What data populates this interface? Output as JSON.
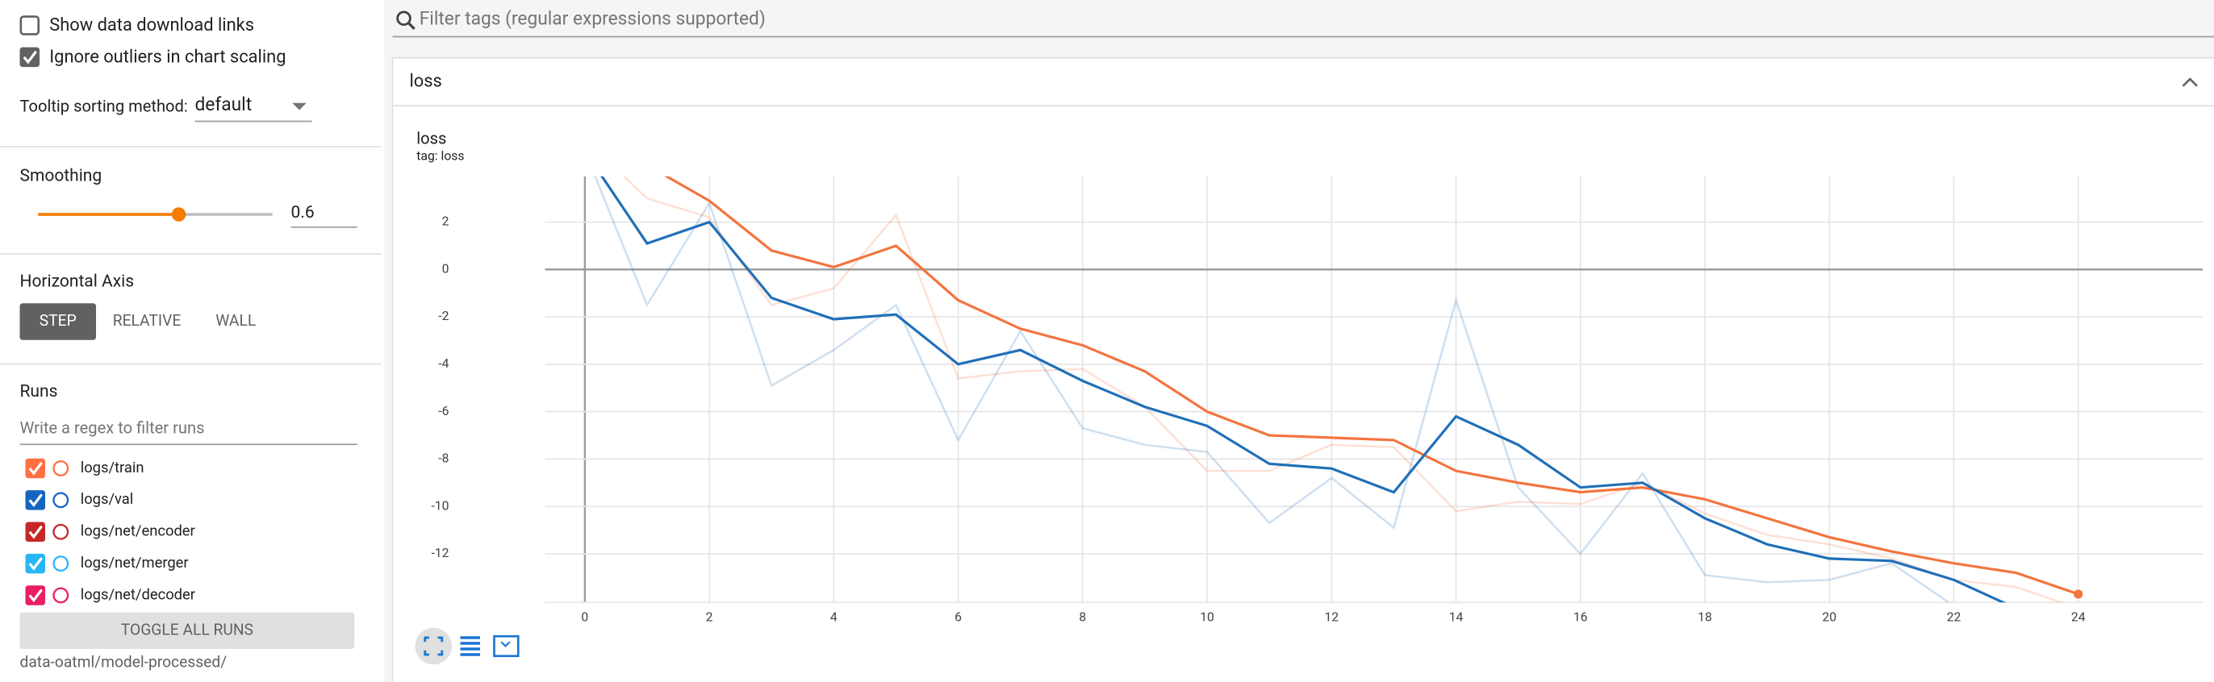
{
  "sidebar": {
    "options": [
      {
        "label": "Show data download links",
        "checked": false
      },
      {
        "label": "Ignore outliers in chart scaling",
        "checked": true
      }
    ],
    "tooltip_label": "Tooltip sorting method:",
    "tooltip_value": "default",
    "smoothing_label": "Smoothing",
    "smoothing_value": 0.6,
    "smoothing_color": "#f57c00",
    "axis_label": "Horizontal Axis",
    "axis_options": [
      "STEP",
      "RELATIVE",
      "WALL"
    ],
    "runs_label": "Runs",
    "runs_filter": "Write a regex to filter runs",
    "runs": [
      {
        "name": "logs/train",
        "color": "#ff7043",
        "checked": true
      },
      {
        "name": "logs/val",
        "color": "#1565c0",
        "checked": true
      },
      {
        "name": "logs/net/encoder",
        "color": "#c62828",
        "checked": true
      },
      {
        "name": "logs/net/merger",
        "color": "#29b6f6",
        "checked": true
      },
      {
        "name": "logs/net/decoder",
        "color": "#e91e63",
        "checked": true
      }
    ],
    "toggle": "TOGGLE ALL RUNS",
    "path": "data-oatml/model-processed/"
  },
  "filter_placeholder": "Filter tags (regular expressions supported)",
  "section_title": "loss",
  "chart_data": {
    "type": "line",
    "title": "loss",
    "subtitle": "tag: loss",
    "x": [
      0,
      1,
      2,
      3,
      4,
      5,
      6,
      7,
      8,
      9,
      10,
      11,
      12,
      13,
      14,
      15,
      16,
      17,
      18,
      19,
      20,
      21,
      22,
      23,
      24
    ],
    "series": [
      {
        "color": "#f4733e",
        "values": [
          5.5,
          3.0,
          2.2,
          -1.5,
          -0.8,
          2.3,
          -4.6,
          -4.3,
          -4.2,
          -5.8,
          -8.5,
          -8.5,
          -7.4,
          -7.5,
          -10.2,
          -9.8,
          -9.9,
          -9.0,
          -10.3,
          -11.2,
          -11.6,
          -12.2,
          -13.1,
          -13.4,
          -14.3
        ],
        "smoothed": [
          6.0,
          4.4,
          2.9,
          0.8,
          0.1,
          1.0,
          -1.3,
          -2.5,
          -3.2,
          -4.3,
          -6.0,
          -7.0,
          -7.1,
          -7.2,
          -8.5,
          -9.0,
          -9.4,
          -9.2,
          -9.7,
          -10.5,
          -11.3,
          -11.9,
          -12.4,
          -12.8,
          -13.7
        ]
      },
      {
        "color": "#1f6fb8",
        "values": [
          5.0,
          -1.5,
          2.8,
          -4.9,
          -3.4,
          -1.5,
          -7.2,
          -2.6,
          -6.7,
          -7.4,
          -7.7,
          -10.7,
          -8.8,
          -10.9,
          -1.3,
          -9.2,
          -12.0,
          -8.6,
          -12.9,
          -13.2,
          -13.1,
          -12.4,
          -14.2,
          -15.0,
          null
        ],
        "smoothed": [
          5.0,
          1.1,
          2.0,
          -1.2,
          -2.1,
          -1.9,
          -4.0,
          -3.4,
          -4.7,
          -5.8,
          -6.6,
          -8.2,
          -8.4,
          -9.4,
          -6.2,
          -7.4,
          -9.2,
          -9.0,
          -10.5,
          -11.6,
          -12.2,
          -12.3,
          -13.1,
          -14.3,
          null
        ]
      }
    ],
    "xlim": [
      -0.64,
      26
    ],
    "ylim": [
      -14.05,
      3.93
    ],
    "xticks": [
      0,
      2,
      4,
      6,
      8,
      10,
      12,
      14,
      16,
      18,
      20,
      22,
      24
    ],
    "yticks": [
      -12,
      -10,
      -8,
      -6,
      -4,
      -2,
      0,
      2
    ],
    "grid": true
  }
}
